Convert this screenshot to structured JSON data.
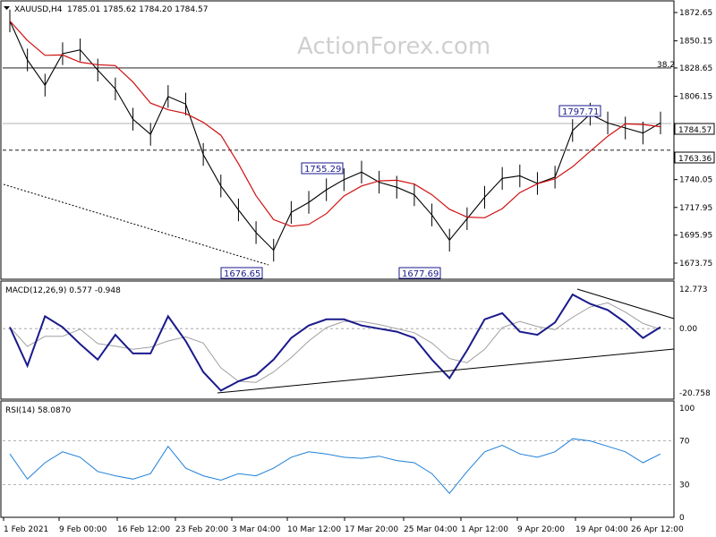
{
  "watermark": "ActionForex.com",
  "main_header": {
    "symbol": "XAUUSD,H4",
    "ohlc": "1785.01 1785.62 1784.20 1784.57"
  },
  "macd_header": "MACD(12,26,9) 0.577 -0.948",
  "rsi_header": "RSI(14) 58.0870",
  "fib_label": "38.2",
  "price_ticks": [
    "1872.65",
    "1850.15",
    "1828.65",
    "1806.15",
    "1784.57",
    "1763.36",
    "1740.05",
    "1717.95",
    "1695.95",
    "1673.75"
  ],
  "macd_ticks": [
    "12.773",
    "0.00",
    "-20.758"
  ],
  "rsi_ticks": [
    "100",
    "70",
    "30",
    "0"
  ],
  "time_ticks": [
    "1 Feb 2021",
    "9 Feb 00:00",
    "16 Feb 12:00",
    "23 Feb 20:00",
    "3 Mar 04:00",
    "10 Mar 12:00",
    "17 Mar 20:00",
    "25 Mar 04:00",
    "1 Apr 12:00",
    "9 Apr 20:00",
    "19 Apr 04:00",
    "26 Apr 12:00"
  ],
  "callouts": [
    "1676.65",
    "1755.29",
    "1677.69",
    "1797.71"
  ],
  "current_price_tag": "1784.57",
  "support_tag": "1763.36",
  "colors": {
    "candle": "#000000",
    "ma": "#d01010",
    "macd": "#1a1a8c",
    "signal": "#a0a0a0",
    "rsi": "#1e7fd8",
    "callout_border": "#1a1a8c"
  },
  "chart_data": {
    "type": "line",
    "title": "XAUUSD,H4",
    "x": [
      "1 Feb",
      "3 Feb",
      "5 Feb",
      "8 Feb",
      "10 Feb",
      "12 Feb",
      "15 Feb",
      "17 Feb",
      "19 Feb",
      "22 Feb",
      "24 Feb",
      "26 Feb",
      "1 Mar",
      "3 Mar",
      "5 Mar",
      "8 Mar",
      "10 Mar",
      "12 Mar",
      "15 Mar",
      "17 Mar",
      "19 Mar",
      "22 Mar",
      "24 Mar",
      "26 Mar",
      "29 Mar",
      "31 Mar",
      "2 Apr",
      "5 Apr",
      "7 Apr",
      "9 Apr",
      "12 Apr",
      "14 Apr",
      "16 Apr",
      "19 Apr",
      "21 Apr",
      "23 Apr",
      "26 Apr",
      "28 Apr"
    ],
    "series": [
      {
        "name": "XAUUSD,H4",
        "values": [
          1866,
          1835,
          1815,
          1840,
          1843,
          1827,
          1812,
          1788,
          1776,
          1806,
          1800,
          1760,
          1735,
          1716,
          1698,
          1684,
          1714,
          1722,
          1732,
          1740,
          1746,
          1738,
          1734,
          1728,
          1712,
          1692,
          1709,
          1726,
          1741,
          1743,
          1737,
          1742,
          1779,
          1792,
          1785,
          1781,
          1777,
          1785
        ]
      }
    ],
    "ylim": [
      1660,
      1880
    ],
    "annotations": [
      {
        "label": "1676.65",
        "x": "8 Mar",
        "y": 1676.65
      },
      {
        "label": "1755.29",
        "x": "18 Mar",
        "y": 1755.29
      },
      {
        "label": "1677.69",
        "x": "31 Mar",
        "y": 1677.69
      },
      {
        "label": "1797.71",
        "x": "19 Apr",
        "y": 1797.71
      }
    ],
    "horizontal_lines": [
      {
        "label": "38.2",
        "y": 1828.65
      },
      {
        "label": "1784.57",
        "y": 1784.57
      },
      {
        "label": "1763.36",
        "y": 1763.36,
        "style": "dashed"
      }
    ],
    "indicators": {
      "macd": {
        "ylim": [
          -20.758,
          12.773
        ],
        "values": [
          0.5,
          -12,
          4,
          0.5,
          -5,
          -10,
          -2,
          -8,
          -8,
          4,
          -4,
          -14,
          -20,
          -17,
          -15,
          -10,
          -3,
          1,
          3,
          3,
          1,
          0,
          -1,
          -3,
          -10,
          -16,
          -7,
          3,
          5,
          -1,
          -2,
          2,
          11,
          8,
          6,
          2,
          -3,
          0.5
        ]
      },
      "rsi": {
        "ylim": [
          0,
          100
        ],
        "levels": [
          30,
          70
        ],
        "values": [
          58,
          35,
          50,
          60,
          55,
          42,
          38,
          35,
          40,
          65,
          45,
          38,
          34,
          40,
          38,
          45,
          55,
          60,
          58,
          55,
          54,
          56,
          52,
          50,
          40,
          22,
          42,
          60,
          66,
          58,
          55,
          60,
          72,
          70,
          65,
          60,
          50,
          58
        ]
      }
    }
  }
}
